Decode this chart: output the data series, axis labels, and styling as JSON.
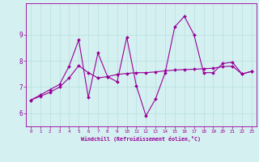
{
  "xlabel": "Windchill (Refroidissement éolien,°C)",
  "background_color": "#d4f0f0",
  "line_color": "#990099",
  "grid_color": "#b8e0e0",
  "x": [
    0,
    1,
    2,
    3,
    4,
    5,
    6,
    7,
    8,
    9,
    10,
    11,
    12,
    13,
    14,
    15,
    16,
    17,
    18,
    19,
    20,
    21,
    22,
    23
  ],
  "y_series1": [
    6.5,
    6.7,
    6.9,
    7.1,
    7.8,
    8.8,
    6.6,
    8.3,
    7.4,
    7.2,
    8.9,
    7.05,
    5.9,
    6.55,
    7.55,
    9.3,
    9.7,
    9.0,
    7.55,
    7.55,
    7.9,
    7.95,
    7.5,
    7.6
  ],
  "y_series2": [
    6.5,
    6.65,
    6.8,
    7.0,
    7.35,
    7.82,
    7.55,
    7.35,
    7.4,
    7.48,
    7.52,
    7.55,
    7.55,
    7.58,
    7.62,
    7.65,
    7.67,
    7.68,
    7.7,
    7.72,
    7.78,
    7.8,
    7.5,
    7.6
  ],
  "ylim": [
    5.5,
    10.2
  ],
  "yticks": [
    6,
    7,
    8,
    9
  ],
  "xticks": [
    0,
    1,
    2,
    3,
    4,
    5,
    6,
    7,
    8,
    9,
    10,
    11,
    12,
    13,
    14,
    15,
    16,
    17,
    18,
    19,
    20,
    21,
    22,
    23
  ],
  "marker": "D",
  "markersize": 2.0,
  "linewidth": 0.8
}
